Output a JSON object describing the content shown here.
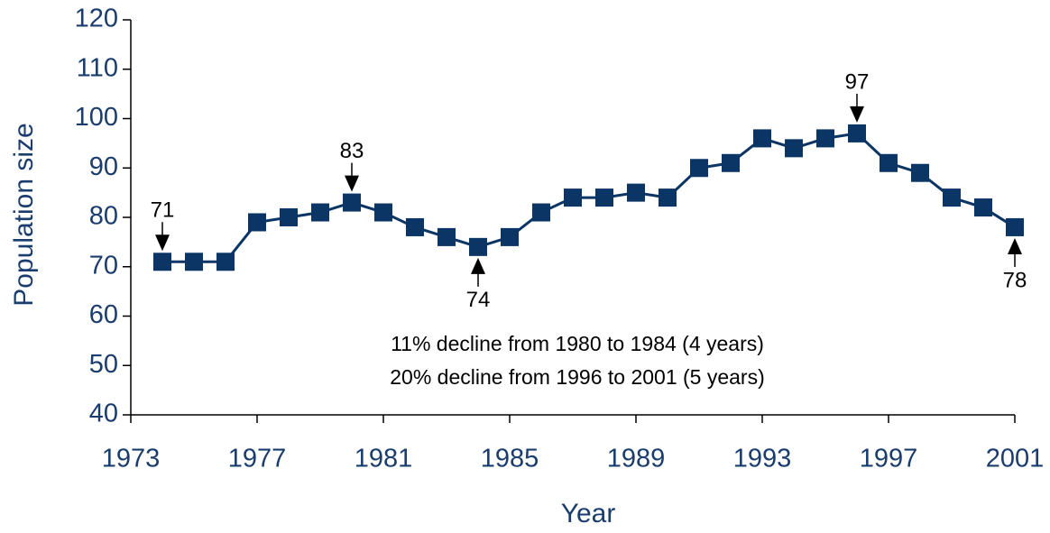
{
  "chart_data": {
    "type": "line",
    "x_label": "Year",
    "y_label": "Population size",
    "x": [
      1974,
      1975,
      1976,
      1977,
      1978,
      1979,
      1980,
      1981,
      1982,
      1983,
      1984,
      1985,
      1986,
      1987,
      1988,
      1989,
      1990,
      1991,
      1992,
      1993,
      1994,
      1995,
      1996,
      1997,
      1998,
      1999,
      2000,
      2001
    ],
    "series": [
      {
        "name": "Population size",
        "color": "#0b3565",
        "values": [
          71,
          71,
          71,
          79,
          80,
          81,
          83,
          81,
          78,
          76,
          74,
          76,
          81,
          84,
          84,
          85,
          84,
          90,
          91,
          96,
          94,
          96,
          97,
          91,
          89,
          84,
          82,
          78
        ],
        "value_labels": [
          "71",
          null,
          null,
          null,
          null,
          null,
          "83",
          null,
          null,
          null,
          "74",
          null,
          null,
          null,
          null,
          null,
          null,
          null,
          null,
          null,
          null,
          null,
          "97",
          null,
          null,
          null,
          null,
          "78"
        ]
      }
    ],
    "xlim": [
      1973,
      2001
    ],
    "xticks": [
      1973,
      1977,
      1981,
      1985,
      1989,
      1993,
      1997,
      2001
    ],
    "ylim": [
      40,
      120
    ],
    "yticks": [
      40,
      50,
      60,
      70,
      80,
      90,
      100,
      110,
      120
    ],
    "notes": [
      "11% decline from 1980 to 1984 (4 years)",
      "20% decline from 1996 to 2001 (5 years)"
    ]
  }
}
